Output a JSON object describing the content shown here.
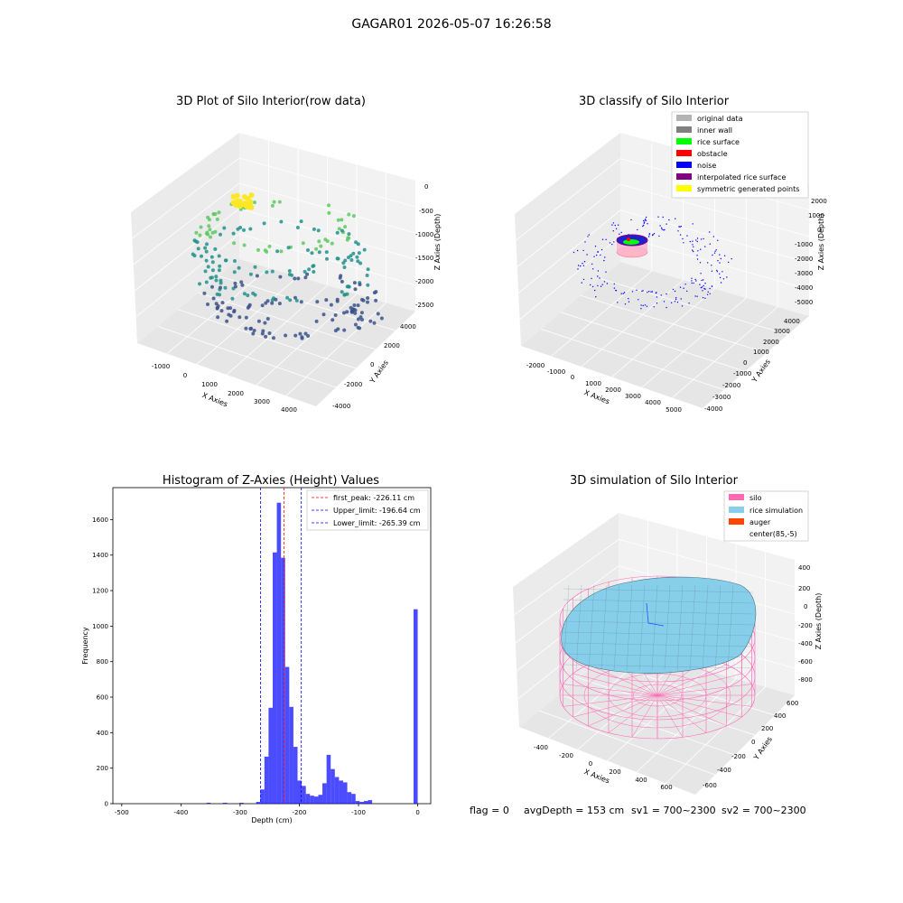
{
  "suptitle": "GAGAR01 2026-05-07 16:26:58",
  "colors": {
    "hist_bar": "#0000ff",
    "peak_line": "#ff0000",
    "limit_line": "#0000ff",
    "pane": "#f2f2f2",
    "original": "#b3b3b3",
    "inner_wall": "#808080",
    "rice_surface": "#00ff00",
    "obstacle": "#ff0000",
    "noise": "#0000ff",
    "interpolated": "#800080",
    "symmetric": "#ffff00",
    "silo": "#ff69b4",
    "rice_sim": "#87ceeb",
    "auger": "#ff4500"
  },
  "status": {
    "flag": "flag = 0",
    "avg_depth": "avgDepth = 153 cm",
    "sv1": "sv1 = 700~2300",
    "sv2": "sv2 = 700~2300"
  },
  "chart_data": [
    {
      "type": "scatter",
      "projection": "3d",
      "title": "3D Plot of Silo Interior(row data)",
      "xlabel": "X Axies",
      "ylabel": "Y Axies",
      "zlabel": "Z Axies (Depth)",
      "xticks": [
        "-1000",
        "0",
        "1000",
        "2000",
        "3000",
        "4000"
      ],
      "yticks": [
        "-4000",
        "-2000",
        "0",
        "2000",
        "4000"
      ],
      "zticks": [
        "0",
        "-500",
        "-1000",
        "-1500",
        "-2000",
        "-2500"
      ],
      "xlim": [
        -1500,
        4500
      ],
      "ylim": [
        -4500,
        4500
      ],
      "zlim": [
        -2700,
        100
      ],
      "colormap": "viridis (by depth)"
    },
    {
      "type": "scatter",
      "projection": "3d",
      "title": "3D classify of Silo Interior",
      "xlabel": "X Axies",
      "ylabel": "Y Axies",
      "zlabel": "Z Axies (Depth)",
      "xticks": [
        "-2000",
        "-1000",
        "0",
        "1000",
        "2000",
        "3000",
        "4000",
        "5000"
      ],
      "yticks": [
        "-4000",
        "-3000",
        "-2000",
        "-1000",
        "0",
        "1000",
        "2000",
        "3000",
        "4000"
      ],
      "zticks": [
        "2000",
        "1000",
        "0",
        "-1000",
        "-2000",
        "-3000",
        "-4000",
        "-5000"
      ],
      "legend": [
        "original data",
        "inner wall",
        "rice surface",
        "obstacle",
        "noise",
        "interpolated rice surface",
        "symmetric generated points"
      ],
      "legend_loc": "upper right"
    },
    {
      "type": "bar",
      "title": "Histogram of Z-Axies (Height) Values",
      "xlabel": "Depth (cm)",
      "ylabel": "Frequency",
      "xlim": [
        -515,
        22
      ],
      "ylim": [
        0,
        1780
      ],
      "xticks": [
        -500,
        -400,
        -300,
        -200,
        -100,
        0
      ],
      "yticks": [
        0,
        200,
        400,
        600,
        800,
        1000,
        1200,
        1400,
        1600
      ],
      "bin_width": 7,
      "bins": [
        {
          "x0": -357,
          "v": 5
        },
        {
          "x0": -329,
          "v": 5
        },
        {
          "x0": -301,
          "v": 5
        },
        {
          "x0": -273,
          "v": 10
        },
        {
          "x0": -266,
          "v": 80
        },
        {
          "x0": -259,
          "v": 265
        },
        {
          "x0": -252,
          "v": 540
        },
        {
          "x0": -245,
          "v": 1415
        },
        {
          "x0": -238,
          "v": 1695
        },
        {
          "x0": -231,
          "v": 1385
        },
        {
          "x0": -224,
          "v": 770
        },
        {
          "x0": -217,
          "v": 545
        },
        {
          "x0": -210,
          "v": 320
        },
        {
          "x0": -203,
          "v": 130
        },
        {
          "x0": -196,
          "v": 100
        },
        {
          "x0": -189,
          "v": 55
        },
        {
          "x0": -182,
          "v": 45
        },
        {
          "x0": -175,
          "v": 40
        },
        {
          "x0": -168,
          "v": 50
        },
        {
          "x0": -161,
          "v": 115
        },
        {
          "x0": -154,
          "v": 275
        },
        {
          "x0": -147,
          "v": 195
        },
        {
          "x0": -140,
          "v": 150
        },
        {
          "x0": -133,
          "v": 130
        },
        {
          "x0": -126,
          "v": 120
        },
        {
          "x0": -119,
          "v": 65
        },
        {
          "x0": -112,
          "v": 55
        },
        {
          "x0": -105,
          "v": 15
        },
        {
          "x0": -98,
          "v": 10
        },
        {
          "x0": -91,
          "v": 15
        },
        {
          "x0": -84,
          "v": 20
        },
        {
          "x0": -7,
          "v": 1095
        }
      ],
      "vlines": [
        {
          "x": -226.11,
          "label": "first_peak: -226.11 cm",
          "color": "red"
        },
        {
          "x": -196.64,
          "label": "Upper_limit: -196.64 cm",
          "color": "blue"
        },
        {
          "x": -265.39,
          "label": "Lower_limit: -265.39 cm",
          "color": "blue"
        }
      ],
      "legend_loc": "upper right"
    },
    {
      "type": "surface",
      "projection": "3d",
      "title": "3D simulation of Silo Interior",
      "xlabel": "X Axies",
      "ylabel": "Y Axies",
      "zlabel": "Z Axies (Depth)",
      "xticks": [
        "-400",
        "-200",
        "0",
        "200",
        "400",
        "600"
      ],
      "yticks": [
        "-600",
        "-400",
        "-200",
        "0",
        "200",
        "400",
        "600"
      ],
      "zticks": [
        "400",
        "200",
        "0",
        "-200",
        "-400",
        "-600",
        "-800"
      ],
      "legend": [
        "silo",
        "rice simulation",
        "auger",
        "center(85,-5)"
      ],
      "legend_loc": "upper right"
    }
  ]
}
